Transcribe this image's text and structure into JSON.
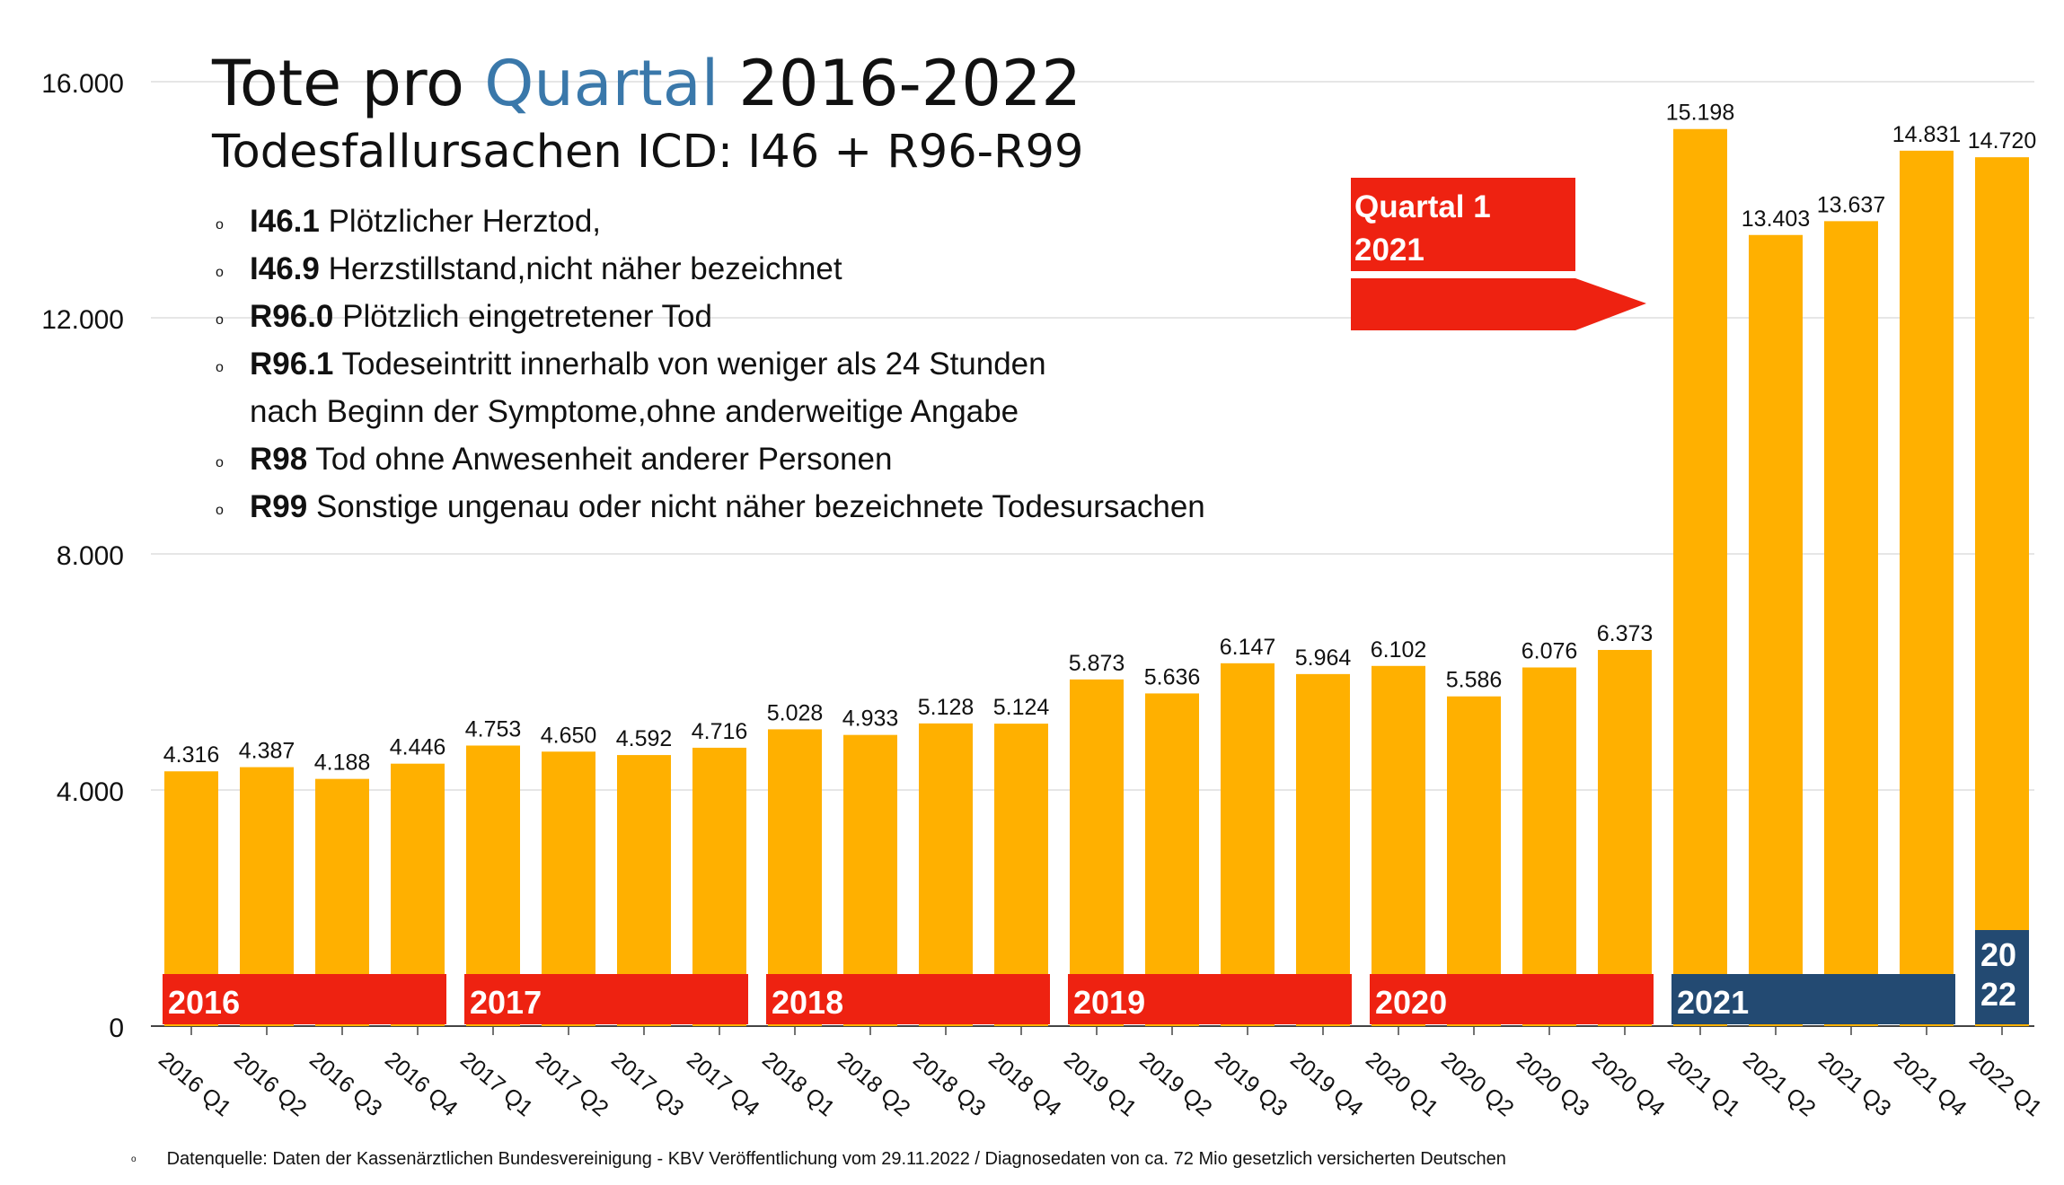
{
  "title": {
    "prefix": "Tote pro ",
    "highlight": "Quartal",
    "suffix": " 2016-2022",
    "subtitle": "Todesfallursachen ICD: I46 + R96-R99"
  },
  "icd_codes": [
    {
      "code": "I46.1",
      "text": " Plötzlicher Herztod,",
      "cont": ""
    },
    {
      "code": "I46.9",
      "text": " Herzstillstand,nicht näher bezeichnet",
      "cont": ""
    },
    {
      "code": "R96.0",
      "text": " Plötzlich eingetretener Tod",
      "cont": ""
    },
    {
      "code": "R96.1",
      "text": " Todeseintritt innerhalb von weniger als 24 Stunden",
      "cont": "nach Beginn der Symptome,ohne anderweitige Angabe"
    },
    {
      "code": "R98",
      "text": " Tod ohne Anwesenheit anderer Personen",
      "cont": ""
    },
    {
      "code": "R99",
      "text": " Sonstige ungenau oder nicht näher bezeichnete Todesursachen",
      "cont": ""
    }
  ],
  "source": "Datenquelle: Daten der Kassenärztlichen Bundesvereinigung - KBV Veröffentlichung vom 29.11.2022 / Diagnosedaten von ca. 72 Mio gesetzlich versicherten Deutschen",
  "annotation": {
    "line1": "Quartal 1",
    "line2": "2021"
  },
  "colors": {
    "bar": "#ffb000",
    "year_band": "#ee2211",
    "year_band_2021": "#234a72",
    "grid": "#dddddd"
  },
  "chart_data": {
    "type": "bar",
    "categories": [
      "2016 Q1",
      "2016 Q2",
      "2016 Q3",
      "2016 Q4",
      "2017 Q1",
      "2017 Q2",
      "2017 Q3",
      "2017 Q4",
      "2018 Q1",
      "2018 Q2",
      "2018 Q3",
      "2018 Q4",
      "2019 Q1",
      "2019 Q2",
      "2019 Q3",
      "2019 Q4",
      "2020 Q1",
      "2020 Q2",
      "2020 Q3",
      "2020 Q4",
      "2021 Q1",
      "2021 Q2",
      "2021 Q3",
      "2021 Q4",
      "2022 Q1"
    ],
    "values": [
      4316,
      4387,
      4188,
      4446,
      4753,
      4650,
      4592,
      4716,
      5028,
      4933,
      5128,
      5124,
      5873,
      5636,
      6147,
      5964,
      6102,
      5586,
      6076,
      6373,
      15198,
      13403,
      13637,
      14831,
      14720
    ],
    "value_labels": [
      "4.316",
      "4.387",
      "4.188",
      "4.446",
      "4.753",
      "4.650",
      "4.592",
      "4.716",
      "5.028",
      "4.933",
      "5.128",
      "5.124",
      "5.873",
      "5.636",
      "6.147",
      "5.964",
      "6.102",
      "5.586",
      "6.076",
      "6.373",
      "15.198",
      "13.403",
      "13.637",
      "14.831",
      "14.720"
    ],
    "ylim": [
      0,
      16000
    ],
    "yticks": [
      0,
      4000,
      8000,
      12000,
      16000
    ],
    "ytick_labels": [
      "0",
      "4.000",
      "8.000",
      "12.000",
      "16.000"
    ],
    "year_groups": [
      {
        "label": "2016",
        "start": 0,
        "end": 3,
        "color": "#ee2211"
      },
      {
        "label": "2017",
        "start": 4,
        "end": 7,
        "color": "#ee2211"
      },
      {
        "label": "2018",
        "start": 8,
        "end": 11,
        "color": "#ee2211"
      },
      {
        "label": "2019",
        "start": 12,
        "end": 15,
        "color": "#ee2211"
      },
      {
        "label": "2020",
        "start": 16,
        "end": 19,
        "color": "#ee2211"
      },
      {
        "label": "2021",
        "start": 20,
        "end": 23,
        "color": "#234a72"
      }
    ],
    "last_band": {
      "index": 24,
      "line1": "20",
      "line2": "22",
      "color": "#234a72"
    },
    "grid": true,
    "legend": "none"
  }
}
